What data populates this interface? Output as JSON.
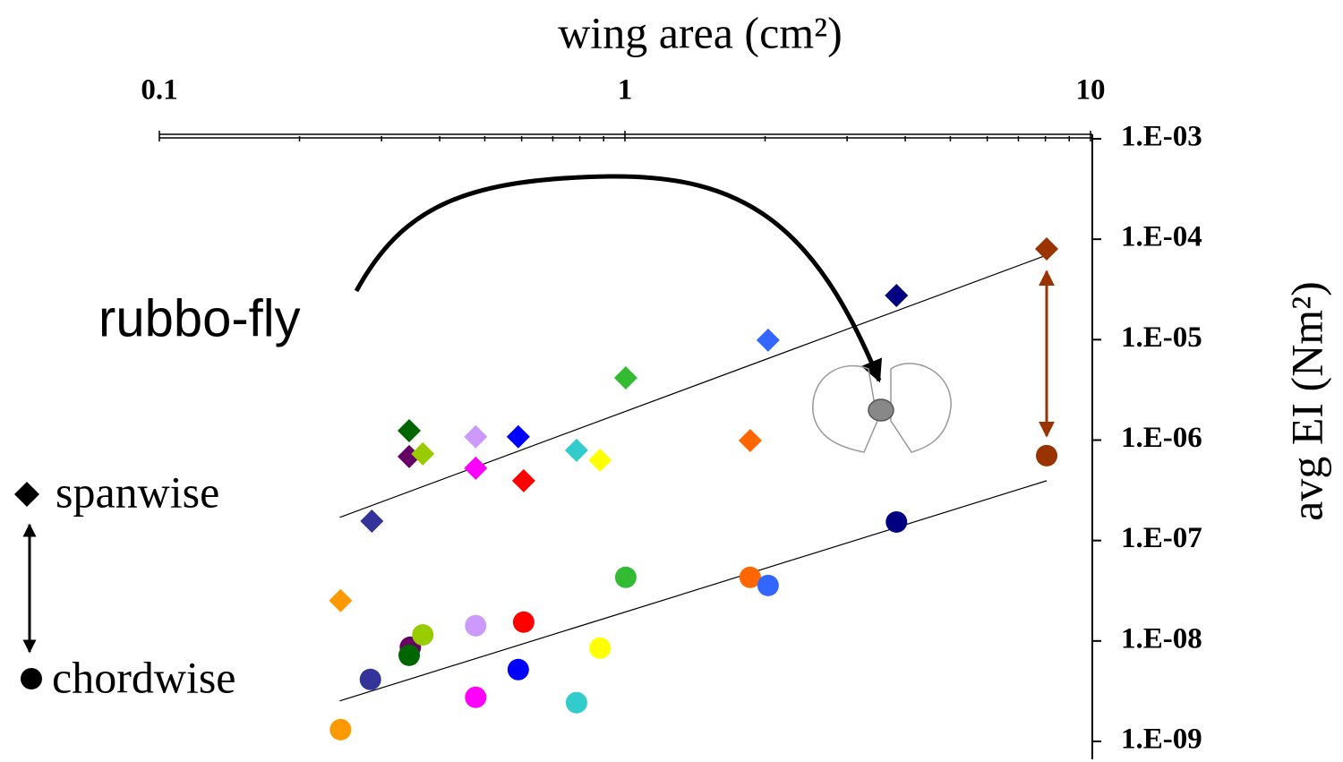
{
  "chart_data": {
    "type": "scatter",
    "x_label": "wing area (cm²)",
    "y_label": "avg EI (Nm²)",
    "annotation": "rubbo-fly",
    "xscale": "log",
    "yscale": "log",
    "xlim": [
      0.1,
      10
    ],
    "xticks": [
      0.1,
      1,
      10
    ],
    "ylim": [
      1e-09,
      0.001
    ],
    "yticks": [
      {
        "value": 0.001,
        "label": "1.E-03"
      },
      {
        "value": 0.0001,
        "label": "1.E-04"
      },
      {
        "value": 1e-05,
        "label": "1.E-05"
      },
      {
        "value": 1e-06,
        "label": "1.E-06"
      },
      {
        "value": 1e-07,
        "label": "1.E-07"
      },
      {
        "value": 1e-08,
        "label": "1.E-08"
      },
      {
        "value": 1e-09,
        "label": "1.E-09"
      }
    ],
    "series": [
      {
        "name": "spanwise",
        "marker": "diamond",
        "x": [
          0.245,
          0.286,
          0.344,
          0.344,
          0.368,
          0.478,
          0.478,
          0.59,
          0.606,
          0.787,
          0.884,
          1.004,
          1.858,
          2.03,
          3.83,
          8.05
        ],
        "values": [
          2.52e-08,
          1.56e-07,
          1.24e-06,
          6.86e-07,
          7.29e-07,
          1.08e-06,
          5.25e-07,
          1.08e-06,
          3.94e-07,
          7.91e-07,
          6.31e-07,
          4.17e-06,
          9.9e-07,
          9.9e-06,
          2.75e-05,
          8e-05
        ],
        "colors": [
          "#ff9900",
          "#333399",
          "#006600",
          "#660066",
          "#99cc00",
          "#cc99ff",
          "#ff00ff",
          "#0000ff",
          "#ff0000",
          "#33cccc",
          "#ffff00",
          "#33bb33",
          "#ff6600",
          "#3366ff",
          "#000080",
          "#993300"
        ]
      },
      {
        "name": "chordwise",
        "marker": "circle",
        "x": [
          0.245,
          0.284,
          0.346,
          0.344,
          0.368,
          0.478,
          0.478,
          0.59,
          0.606,
          0.787,
          0.884,
          1.004,
          1.858,
          2.03,
          3.83,
          8.05
        ],
        "values": [
          1.31e-09,
          4.14e-09,
          8.67e-09,
          7.2e-09,
          1.15e-08,
          1.42e-08,
          2.75e-09,
          5.19e-09,
          1.54e-08,
          2.43e-09,
          8.49e-09,
          4.3e-08,
          4.3e-08,
          3.57e-08,
          1.53e-07,
          7e-07
        ],
        "colors": [
          "#ff9900",
          "#333399",
          "#660066",
          "#006600",
          "#99cc00",
          "#cc99ff",
          "#ff00ff",
          "#0000ff",
          "#ff0000",
          "#33cccc",
          "#ffff00",
          "#33bb33",
          "#ff6600",
          "#3366ff",
          "#000080",
          "#993300"
        ]
      }
    ],
    "trendlines": [
      {
        "x": [
          0.244,
          8.05
        ],
        "values": [
          1.7e-07,
          6.94e-05
        ]
      },
      {
        "x": [
          0.244,
          8.05
        ],
        "values": [
          2.53e-09,
          3.94e-07
        ]
      }
    ]
  }
}
